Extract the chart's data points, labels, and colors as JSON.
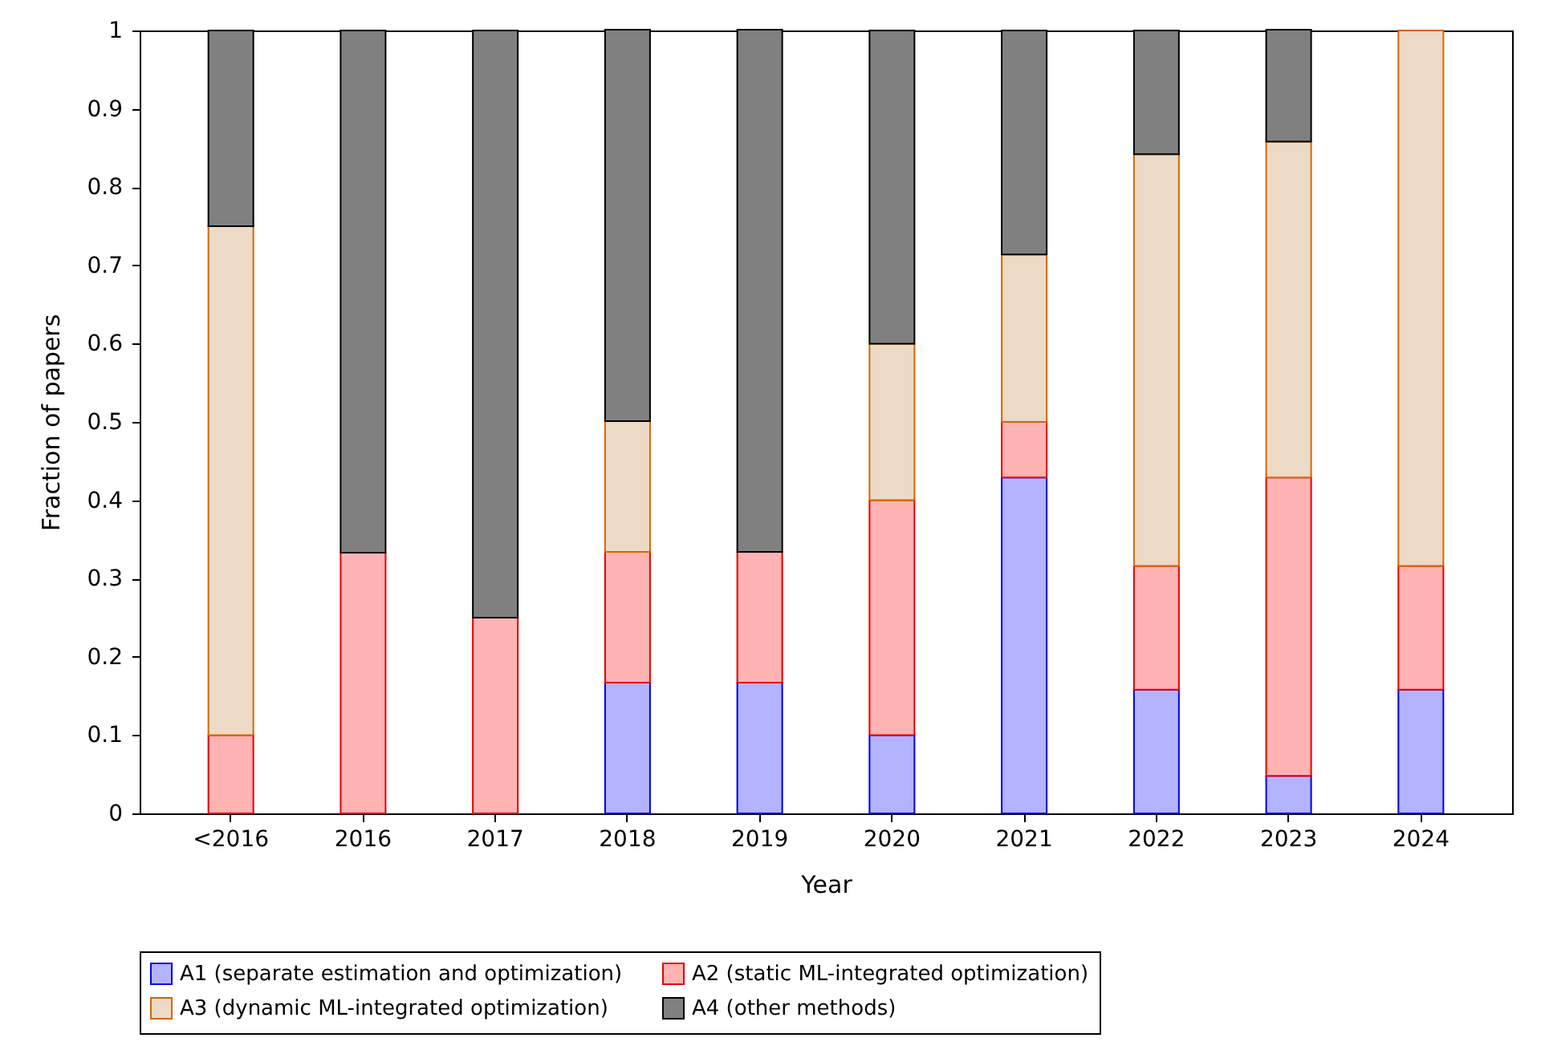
{
  "chart_data": {
    "type": "bar",
    "stacked": true,
    "xlabel": "Year",
    "ylabel": "Fraction of papers",
    "categories": [
      "<2016",
      "2016",
      "2017",
      "2018",
      "2019",
      "2020",
      "2021",
      "2022",
      "2023",
      "2024"
    ],
    "series": [
      {
        "name": "A1 (separate estimation and optimization)",
        "color": "#b3b3ff",
        "values": [
          0,
          0,
          0,
          0.167,
          0.167,
          0.1,
          0.429,
          0.158,
          0.048,
          0.158
        ]
      },
      {
        "name": "A2 (static ML-integrated optimization)",
        "color": "#ffb3b3",
        "values": [
          0.1,
          0.333,
          0.25,
          0.167,
          0.167,
          0.3,
          0.071,
          0.158,
          0.381,
          0.158
        ]
      },
      {
        "name": "A3 (dynamic ML-integrated optimization)",
        "color": "#ecdac6",
        "values": [
          0.65,
          0,
          0,
          0.167,
          0,
          0.2,
          0.214,
          0.526,
          0.429,
          0.684
        ]
      },
      {
        "name": "A4 (other methods)",
        "color": "#808080",
        "values": [
          0.25,
          0.667,
          0.75,
          0.5,
          0.667,
          0.4,
          0.286,
          0.158,
          0.143,
          0
        ]
      }
    ],
    "ylim": [
      0,
      1
    ],
    "yticks": [
      0,
      0.1,
      0.2,
      0.3,
      0.4,
      0.5,
      0.6,
      0.7,
      0.8,
      0.9,
      1
    ],
    "grid": false,
    "legend": "bottom"
  }
}
